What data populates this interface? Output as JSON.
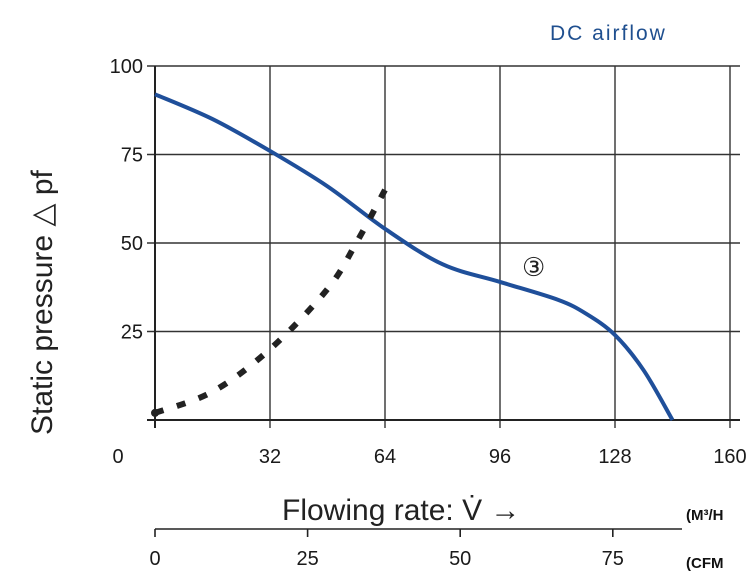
{
  "chart_data": {
    "type": "line",
    "title": "DC airflow",
    "ylabel": "Static pressure △ pf",
    "xlabel": "Flowing rate: V̇ →",
    "x_unit_primary": "(M³/H",
    "x_unit_secondary": "(CFM",
    "xlim": [
      0,
      160
    ],
    "ylim": [
      0,
      100
    ],
    "x_ticks": [
      "0",
      "32",
      "64",
      "96",
      "128",
      "160"
    ],
    "y_ticks": [
      "100",
      "75",
      "50",
      "25"
    ],
    "x2_ticks": [
      "0",
      "25",
      "50",
      "75"
    ],
    "grid": true,
    "series": [
      {
        "name": "③",
        "style": "solid",
        "color": "#1f4f9a",
        "x": [
          0,
          16,
          32,
          48,
          64,
          80,
          96,
          112,
          120,
          128,
          136,
          144
        ],
        "y": [
          92,
          85,
          76,
          66,
          54,
          44,
          39,
          34,
          30,
          24,
          14,
          0
        ]
      },
      {
        "name": "",
        "style": "dotted",
        "color": "#222222",
        "x": [
          0,
          16,
          32,
          48,
          56,
          64
        ],
        "y": [
          2,
          8,
          20,
          37,
          50,
          65
        ]
      }
    ]
  }
}
